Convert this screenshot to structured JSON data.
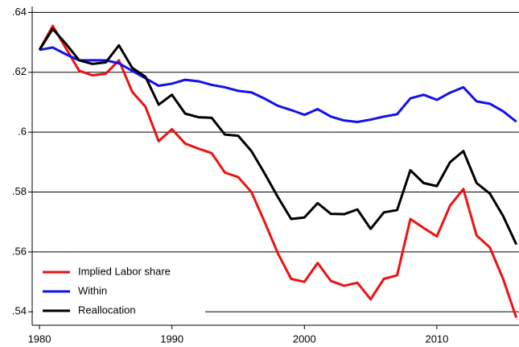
{
  "chart_data": {
    "type": "line",
    "x": [
      1980,
      1981,
      1982,
      1983,
      1984,
      1985,
      1986,
      1987,
      1988,
      1989,
      1990,
      1991,
      1992,
      1993,
      1994,
      1995,
      1996,
      1997,
      1998,
      1999,
      2000,
      2001,
      2002,
      2003,
      2004,
      2005,
      2006,
      2007,
      2008,
      2009,
      2010,
      2011,
      2012,
      2013,
      2014,
      2015,
      2016
    ],
    "series": [
      {
        "name": "Implied Labor share",
        "color": "#ee1111",
        "values": [
          0.6275,
          0.6355,
          0.628,
          0.6205,
          0.619,
          0.6195,
          0.624,
          0.6135,
          0.6085,
          0.597,
          0.601,
          0.5962,
          0.5945,
          0.593,
          0.5865,
          0.585,
          0.58,
          0.57,
          0.5595,
          0.551,
          0.55,
          0.5563,
          0.5503,
          0.5487,
          0.5497,
          0.5442,
          0.551,
          0.5522,
          0.571,
          0.568,
          0.5652,
          0.5755,
          0.581,
          0.5655,
          0.5615,
          0.551,
          0.538
        ]
      },
      {
        "name": "Within",
        "color": "#1111ee",
        "values": [
          0.6275,
          0.6283,
          0.626,
          0.624,
          0.624,
          0.624,
          0.623,
          0.6205,
          0.618,
          0.6155,
          0.6162,
          0.6175,
          0.617,
          0.6158,
          0.615,
          0.6138,
          0.6133,
          0.6112,
          0.6088,
          0.6074,
          0.6058,
          0.6077,
          0.6052,
          0.6039,
          0.6034,
          0.6042,
          0.6052,
          0.606,
          0.6113,
          0.6125,
          0.6108,
          0.6132,
          0.615,
          0.6103,
          0.6095,
          0.607,
          0.6035
        ]
      },
      {
        "name": "Reallocation",
        "color": "#000000",
        "values": [
          0.6275,
          0.6345,
          0.6295,
          0.624,
          0.6228,
          0.6233,
          0.629,
          0.6215,
          0.6185,
          0.6092,
          0.6125,
          0.6062,
          0.605,
          0.6048,
          0.5992,
          0.5988,
          0.5937,
          0.5862,
          0.5783,
          0.571,
          0.5715,
          0.5763,
          0.5727,
          0.5726,
          0.5742,
          0.5677,
          0.5732,
          0.574,
          0.5873,
          0.583,
          0.582,
          0.59,
          0.5937,
          0.583,
          0.5795,
          0.572,
          0.5625
        ]
      }
    ],
    "xlim": [
      1979.45,
      2016.2
    ],
    "xticks": [
      1980,
      1990,
      2000,
      2010
    ],
    "ylim": [
      0.5355,
      0.642
    ],
    "yticks": [
      {
        "value": 0.54,
        "label": ".54"
      },
      {
        "value": 0.56,
        "label": ".56"
      },
      {
        "value": 0.58,
        "label": ".58"
      },
      {
        "value": 0.6,
        "label": ".6"
      },
      {
        "value": 0.62,
        "label": ".62"
      },
      {
        "value": 0.64,
        "label": ".64"
      }
    ],
    "grid": true,
    "legend": "lower left"
  }
}
